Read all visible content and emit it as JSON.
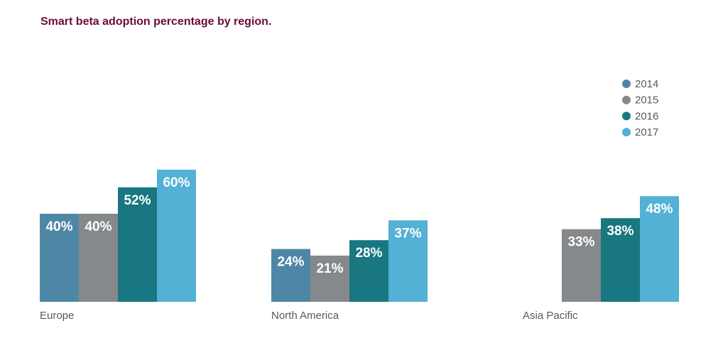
{
  "chart_data": {
    "type": "bar",
    "title": "Smart beta adoption percentage by region.",
    "xlabel": "",
    "ylabel": "",
    "ylim": [
      0,
      60
    ],
    "grid": false,
    "legend_position": "top-right",
    "categories": [
      "Europe",
      "North America",
      "Asia Pacific"
    ],
    "series": [
      {
        "name": "2014",
        "color": "#4e87a5",
        "values": [
          40,
          24,
          null
        ],
        "labels": [
          "40%",
          "24%",
          ""
        ]
      },
      {
        "name": "2015",
        "color": "#86898b",
        "values": [
          40,
          21,
          33
        ],
        "labels": [
          "40%",
          "21%",
          "33%"
        ]
      },
      {
        "name": "2016",
        "color": "#187780",
        "values": [
          52,
          28,
          38
        ],
        "labels": [
          "52%",
          "28%",
          "38%"
        ]
      },
      {
        "name": "2017",
        "color": "#52b1d4",
        "values": [
          60,
          37,
          48
        ],
        "labels": [
          "60%",
          "37%",
          "48%"
        ]
      }
    ]
  }
}
